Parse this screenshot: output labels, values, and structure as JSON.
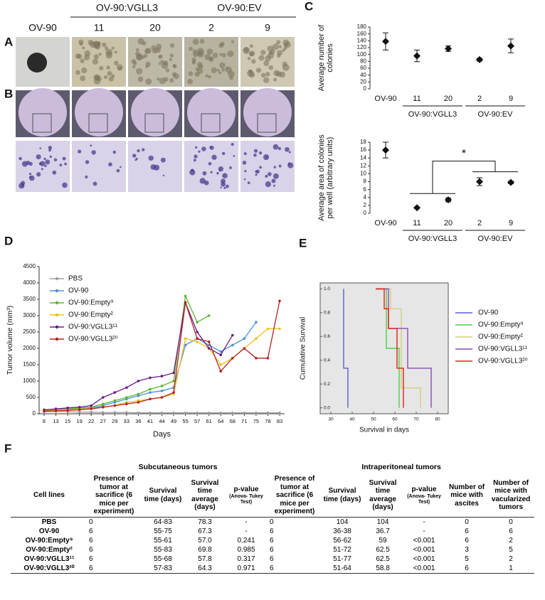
{
  "panels": [
    "A",
    "B",
    "C",
    "D",
    "E",
    "F"
  ],
  "photos": {
    "columns": [
      "OV-90",
      "11",
      "20",
      "2",
      "9"
    ],
    "groups": [
      "OV-90:VGLL3",
      "OV-90:EV"
    ]
  },
  "chart_data": [
    {
      "type": "errorbar",
      "ylabel": [
        "Average number of",
        "colonies"
      ],
      "categories": [
        "OV-90",
        "11",
        "20",
        "2",
        "9"
      ],
      "groups": [
        "OV-90:VGLL3",
        "OV-90:EV"
      ],
      "values": [
        138,
        96,
        117,
        85,
        125
      ],
      "errors": [
        25,
        17,
        8,
        4,
        20
      ],
      "color": "#111111",
      "ylim": [
        0,
        180
      ],
      "yticks": [
        0,
        20,
        40,
        60,
        80,
        100,
        120,
        140,
        160,
        180
      ]
    },
    {
      "type": "errorbar",
      "ylabel": [
        "Average area of colonies",
        "per well (arbitrary units)"
      ],
      "categories": [
        "OV-90",
        "11",
        "20",
        "2",
        "9"
      ],
      "groups": [
        "OV-90:VGLL3",
        "OV-90:EV"
      ],
      "values": [
        16,
        1.4,
        3.4,
        8,
        7.8
      ],
      "errors": [
        2,
        0.2,
        0.5,
        1,
        0.3
      ],
      "color": "#111111",
      "annotations": [
        "*"
      ],
      "ylim": [
        0,
        18
      ],
      "yticks": [
        0,
        2,
        4,
        6,
        8,
        10,
        12,
        14,
        16,
        18
      ]
    },
    {
      "type": "line",
      "ylabel": "Tumor volume (mm³)",
      "xlabel": "Days",
      "categories": [
        "8",
        "13",
        "15",
        "19",
        "22",
        "27",
        "29",
        "33",
        "36",
        "41",
        "44",
        "49",
        "55",
        "57",
        "61",
        "64",
        "68",
        "71",
        "75",
        "78",
        "83"
      ],
      "ylim": [
        0,
        4500
      ],
      "yticks": [
        0,
        500,
        1000,
        1500,
        2000,
        2500,
        3000,
        3500,
        4000,
        4500
      ],
      "series": [
        {
          "name": "PBS",
          "color": "#a0a0a0",
          "values": [
            60,
            70,
            60,
            50,
            50,
            40,
            40,
            40,
            30,
            30,
            30,
            30,
            30,
            30,
            30,
            30,
            30,
            30,
            30,
            30,
            30
          ]
        },
        {
          "name": "OV-90",
          "color": "#4a90d9",
          "values": [
            100,
            120,
            140,
            150,
            170,
            250,
            350,
            450,
            550,
            650,
            700,
            800,
            2100,
            2300,
            2100,
            1900,
            2100,
            2300,
            2800,
            null,
            null
          ]
        },
        {
          "name": "OV-90:Empty⁹",
          "color": "#5cb531",
          "values": [
            100,
            130,
            150,
            170,
            200,
            300,
            400,
            500,
            600,
            750,
            850,
            1000,
            3600,
            2800,
            3000,
            null,
            null,
            null,
            null,
            null,
            null
          ]
        },
        {
          "name": "OV-90:Empty²",
          "color": "#f0c020",
          "values": [
            90,
            110,
            120,
            140,
            160,
            200,
            250,
            350,
            400,
            450,
            500,
            600,
            2300,
            2200,
            2000,
            1500,
            1700,
            2000,
            2300,
            2600,
            2600
          ]
        },
        {
          "name": "OV-90:VGLL3¹¹",
          "color": "#6a1b8a",
          "values": [
            120,
            150,
            180,
            200,
            250,
            500,
            650,
            800,
            1000,
            1100,
            1150,
            1250,
            3400,
            2500,
            2000,
            1800,
            2400,
            null,
            null,
            null,
            null
          ]
        },
        {
          "name": "OV-90:VGLL3²⁰",
          "color": "#b22222",
          "values": [
            80,
            90,
            100,
            120,
            150,
            200,
            250,
            300,
            350,
            450,
            500,
            650,
            3400,
            2300,
            2200,
            1300,
            1700,
            2000,
            1700,
            1700,
            3450
          ]
        }
      ]
    },
    {
      "type": "step",
      "ylabel": "Cumulative Survival",
      "xlabel": "Survival in days",
      "xlim": [
        25,
        85
      ],
      "xticks": [
        30,
        40,
        50,
        60,
        70,
        80
      ],
      "ylim": [
        -0.05,
        1.05
      ],
      "yticks": [
        {
          "value": 0,
          "label": "0.0"
        },
        {
          "value": 0.2,
          "label": "0.2"
        },
        {
          "value": 0.4,
          "label": "0.4"
        },
        {
          "value": 0.6,
          "label": "0.6"
        },
        {
          "value": 0.8,
          "label": "0.8"
        },
        {
          "value": 1,
          "label": "1.0"
        }
      ],
      "series": [
        {
          "name": "OV-90",
          "color": "#5b5bd6",
          "x": [
            36,
            36,
            38
          ],
          "values": [
            1,
            0.333,
            0
          ]
        },
        {
          "name": "OV-90:Empty⁹",
          "color": "#4cd04c",
          "x": [
            51,
            56,
            62
          ],
          "values": [
            1,
            0.5,
            0
          ]
        },
        {
          "name": "OV-90:Empty²",
          "color": "#d0d080",
          "x": [
            51,
            58,
            63,
            72
          ],
          "values": [
            1,
            0.833,
            0.167,
            0
          ]
        },
        {
          "name": "OV-90:VGLL3¹¹",
          "color": "#8a4ab5",
          "x": [
            51,
            57,
            66,
            77
          ],
          "values": [
            1,
            0.667,
            0.333,
            0
          ]
        },
        {
          "name": "OV-90:VGLL3²⁰",
          "color": "#e02010",
          "x": [
            51,
            55,
            57,
            61,
            64
          ],
          "values": [
            1,
            0.833,
            0.667,
            0.333,
            0
          ]
        }
      ]
    }
  ],
  "table": {
    "groups": [
      "Subcutaneous tumors",
      "Intraperitoneal tumors"
    ],
    "columns": [
      {
        "label": "Cell lines"
      },
      {
        "label": "Presence of tumor at sacrifice (6 mice per experiment)"
      },
      {
        "label": "Survival time (days)"
      },
      {
        "label": "Survival time average (days)"
      },
      {
        "label": "p-value",
        "note": "(Anova- Tukey Test)"
      },
      {
        "label": "Presence of tumor at sacrifice (6 mice per experiment)"
      },
      {
        "label": "Survival time (days)"
      },
      {
        "label": "Survival time average (days)"
      },
      {
        "label": "p-value",
        "note": "(Anova- Tukey Test)"
      },
      {
        "label": "Number of mice with ascites"
      },
      {
        "label": "Number of mice with vacularized tumors"
      }
    ],
    "rows": [
      [
        "PBS",
        "0",
        "64-83",
        "78.3",
        "-",
        "0",
        "104",
        "104",
        "-",
        "0",
        "0"
      ],
      [
        "OV-90",
        "6",
        "55-75",
        "67.3",
        "-",
        "6",
        "36-38",
        "36.7",
        "-",
        "6",
        "6"
      ],
      [
        "OV-90:Empty⁹",
        "6",
        "55-61",
        "57.0",
        "0.241",
        "6",
        "56-62",
        "59",
        "<0.001",
        "6",
        "2"
      ],
      [
        "OV-90:Empty²",
        "6",
        "55-83",
        "69.8",
        "0.985",
        "6",
        "51-72",
        "62.5",
        "<0.001",
        "3",
        "5"
      ],
      [
        "OV-90:VGLL3¹¹",
        "6",
        "55-68",
        "57.8",
        "0.317",
        "6",
        "51-77",
        "62.5",
        "<0.001",
        "5",
        "2"
      ],
      [
        "OV-90:VGLL3²⁰",
        "6",
        "57-83",
        "64.3",
        "0.971",
        "6",
        "51-64",
        "58.8",
        "<0.001",
        "6",
        "1"
      ]
    ]
  }
}
